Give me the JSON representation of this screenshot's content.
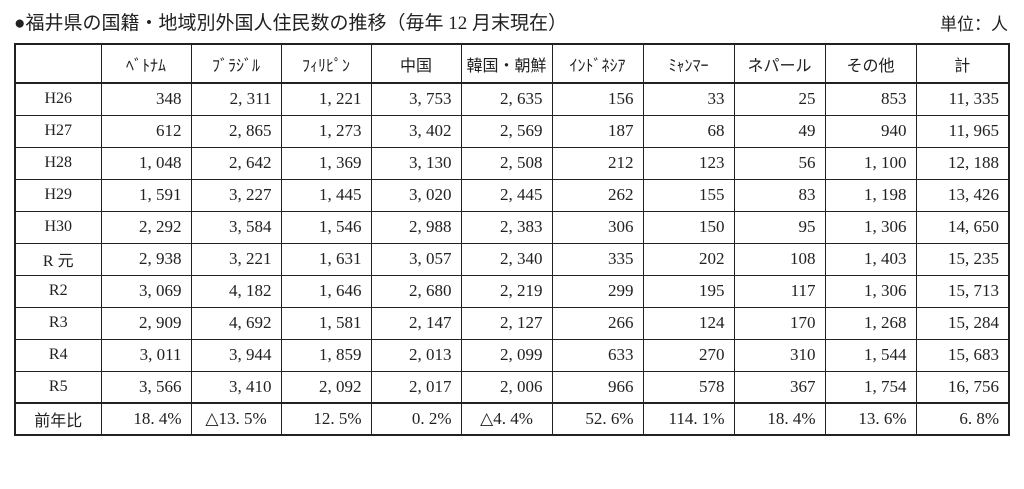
{
  "page": {
    "title": "●福井県の国籍・地域別外国人住民数の推移（毎年 12 月末現在）",
    "unit_label": "単位：人"
  },
  "table": {
    "columns": [
      "ﾍﾞﾄﾅﾑ",
      "ﾌﾞﾗｼﾞﾙ",
      "ﾌｨﾘﾋﾟﾝ",
      "中国",
      "韓国・朝鮮",
      "ｲﾝﾄﾞﾈｼｱ",
      "ﾐｬﾝﾏｰ",
      "ネパール",
      "その他",
      "計"
    ],
    "rows": [
      {
        "label": "H26",
        "values": [
          "348",
          "2, 311",
          "1, 221",
          "3, 753",
          "2, 635",
          "156",
          "33",
          "25",
          "853",
          "11, 335"
        ]
      },
      {
        "label": "H27",
        "values": [
          "612",
          "2, 865",
          "1, 273",
          "3, 402",
          "2, 569",
          "187",
          "68",
          "49",
          "940",
          "11, 965"
        ]
      },
      {
        "label": "H28",
        "values": [
          "1, 048",
          "2, 642",
          "1, 369",
          "3, 130",
          "2, 508",
          "212",
          "123",
          "56",
          "1, 100",
          "12, 188"
        ]
      },
      {
        "label": "H29",
        "values": [
          "1, 591",
          "3, 227",
          "1, 445",
          "3, 020",
          "2, 445",
          "262",
          "155",
          "83",
          "1, 198",
          "13, 426"
        ]
      },
      {
        "label": "H30",
        "values": [
          "2, 292",
          "3, 584",
          "1, 546",
          "2, 988",
          "2, 383",
          "306",
          "150",
          "95",
          "1, 306",
          "14, 650"
        ]
      },
      {
        "label": "R 元",
        "values": [
          "2, 938",
          "3, 221",
          "1, 631",
          "3, 057",
          "2, 340",
          "335",
          "202",
          "108",
          "1, 403",
          "15, 235"
        ]
      },
      {
        "label": "R2",
        "values": [
          "3, 069",
          "4, 182",
          "1, 646",
          "2, 680",
          "2, 219",
          "299",
          "195",
          "117",
          "1, 306",
          "15, 713"
        ]
      },
      {
        "label": "R3",
        "values": [
          "2, 909",
          "4, 692",
          "1, 581",
          "2, 147",
          "2, 127",
          "266",
          "124",
          "170",
          "1, 268",
          "15, 284"
        ]
      },
      {
        "label": "R4",
        "values": [
          "3, 011",
          "3, 944",
          "1, 859",
          "2, 013",
          "2, 099",
          "633",
          "270",
          "310",
          "1, 544",
          "15, 683"
        ]
      },
      {
        "label": "R5",
        "values": [
          "3, 566",
          "3, 410",
          "2, 092",
          "2, 017",
          "2, 006",
          "966",
          "578",
          "367",
          "1, 754",
          "16, 756"
        ]
      }
    ],
    "footer": {
      "label": "前年比",
      "values": [
        "18. 4%",
        "△13. 5%",
        "12. 5%",
        "0. 2%",
        "△4. 4%",
        "52. 6%",
        "114. 1%",
        "18. 4%",
        "13. 6%",
        "6. 8%"
      ]
    }
  },
  "colors": {
    "ink": "#212121",
    "background": "#ffffff"
  }
}
